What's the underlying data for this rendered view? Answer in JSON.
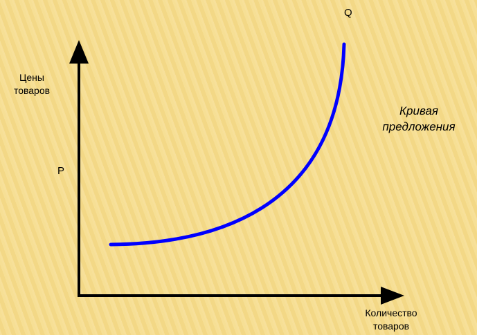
{
  "diagram": {
    "labels": {
      "q": "Q",
      "p": "P",
      "y_axis_line1": "Цены",
      "y_axis_line2": "товаров",
      "x_axis_line1": "Количество",
      "x_axis_line2": "товаров",
      "curve_line1": "Кривая",
      "curve_line2": "предложения"
    },
    "colors": {
      "background": "#f6dd8e",
      "axis": "#000000",
      "curve": "#0000ff"
    }
  }
}
